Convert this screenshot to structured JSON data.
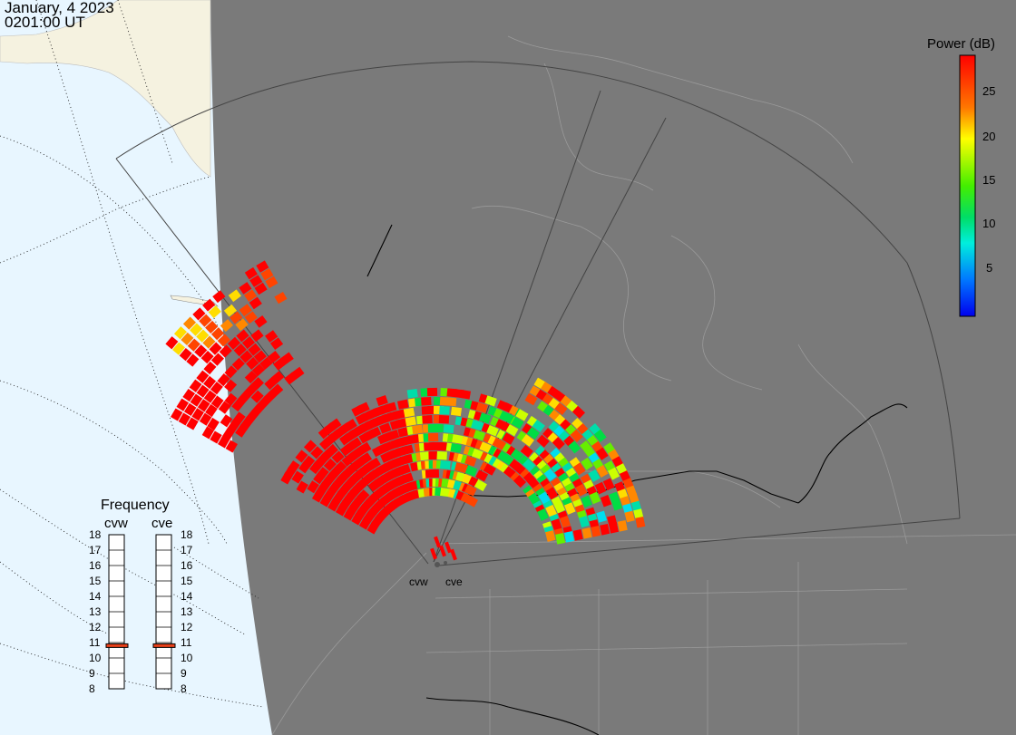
{
  "header": {
    "date": "January, 4 2023",
    "time": "0201:00 UT"
  },
  "colorbar": {
    "title": "Power (dB)",
    "ticks": [
      "25",
      "20",
      "15",
      "10",
      "5"
    ]
  },
  "frequency": {
    "title": "Frequency",
    "radars": [
      {
        "name": "cvw",
        "selected_mhz": 10.8
      },
      {
        "name": "cve",
        "selected_mhz": 10.8
      }
    ],
    "scale": [
      "18",
      "17",
      "16",
      "15",
      "14",
      "13",
      "12",
      "11",
      "10",
      "9",
      "8"
    ]
  },
  "map": {
    "radar_labels": [
      "cvw",
      "cve"
    ]
  },
  "colors": {
    "land": "#7a7a7a",
    "ocean": "#e8f6ff",
    "night_land": "#f5f2e0",
    "frequency_marker": "#e8401a"
  }
}
